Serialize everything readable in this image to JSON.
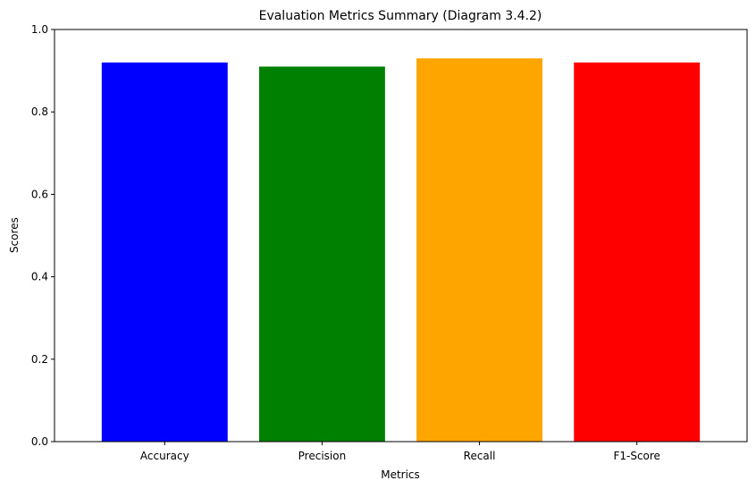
{
  "chart_data": {
    "type": "bar",
    "title": "Evaluation Metrics Summary (Diagram 3.4.2)",
    "xlabel": "Metrics",
    "ylabel": "Scores",
    "categories": [
      "Accuracy",
      "Precision",
      "Recall",
      "F1-Score"
    ],
    "values": [
      0.92,
      0.91,
      0.93,
      0.92
    ],
    "colors": [
      "#0000ff",
      "#008000",
      "#ffa500",
      "#ff0000"
    ],
    "ylim": [
      0,
      1.0
    ],
    "yticks": [
      "0.0",
      "0.2",
      "0.4",
      "0.6",
      "0.8",
      "1.0"
    ],
    "grid": false,
    "legend": "none"
  }
}
